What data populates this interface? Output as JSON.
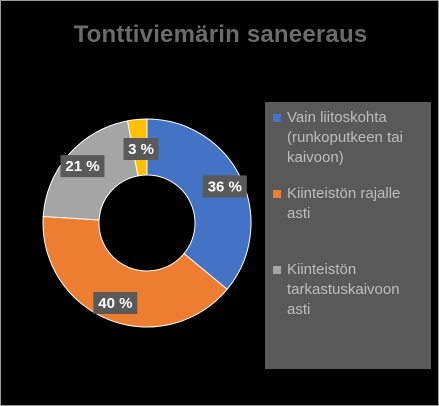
{
  "chart_data": {
    "type": "pie",
    "variant": "donut",
    "title": "Tonttiviemärin saneeraus",
    "categories": [
      "Vain liitoskohta (runkoputkeen tai kaivoon)",
      "Kiinteistön rajalle asti",
      "Kiinteistön tarkastuskaivoon asti",
      ""
    ],
    "values": [
      36,
      40,
      21,
      3
    ],
    "labels": [
      "36 %",
      "40 %",
      "21 %",
      "3 %"
    ],
    "colors": [
      "#4472c4",
      "#ed7d31",
      "#a5a5a5",
      "#ffc000"
    ],
    "legend_position": "right"
  },
  "legend": {
    "items": [
      {
        "label": "Vain liitoskohta (runkoputkeen tai kaivoon)",
        "color": "#4472c4"
      },
      {
        "label": "Kiinteistön rajalle asti",
        "color": "#ed7d31"
      },
      {
        "label": "Kiinteistön tarkastuskaivoon asti",
        "color": "#a5a5a5"
      }
    ]
  },
  "style": {
    "background": "#000000",
    "label_box": "#595959",
    "title_color": "#6b6b6b"
  }
}
